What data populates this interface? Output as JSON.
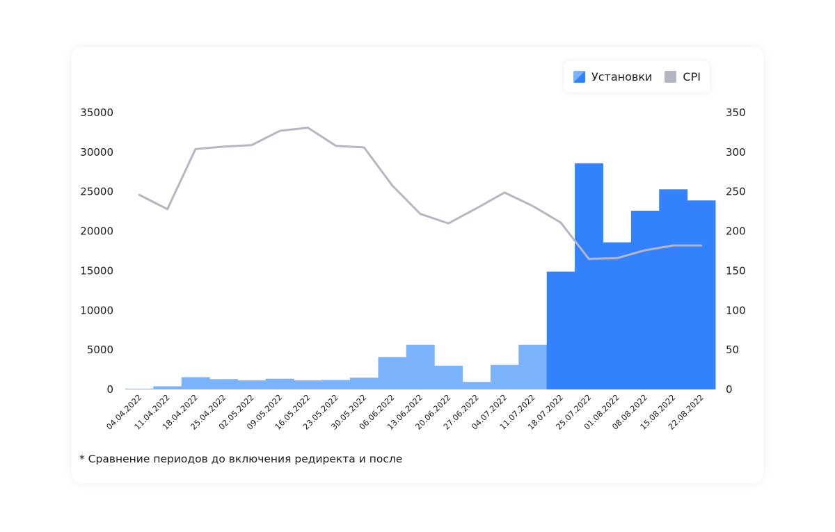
{
  "chart_data": {
    "type": "bar",
    "title": "",
    "xlabel": "",
    "ylabel": "",
    "categories": [
      "04.04.2022",
      "11.04.2022",
      "18.04.2022",
      "25.04.2022",
      "02.05.2022",
      "09.05.2022",
      "16.05.2022",
      "23.05.2022",
      "30.05.2022",
      "06.06.2022",
      "13.06.2022",
      "20.06.2022",
      "27.06.2022",
      "04.07.2022",
      "11.07.2022",
      "18.07.2022",
      "25.07.2022",
      "01.08.2022",
      "08.08.2022",
      "15.08.2022",
      "22.08.2022"
    ],
    "series": [
      {
        "name": "Установки",
        "type": "bar",
        "axis": "left",
        "values": [
          100,
          400,
          1550,
          1300,
          1150,
          1350,
          1150,
          1200,
          1500,
          4100,
          5650,
          3000,
          950,
          3100,
          5650,
          14900,
          28600,
          18600,
          22600,
          25300,
          23900
        ]
      },
      {
        "name": "CPI",
        "type": "line",
        "axis": "right",
        "values": [
          246,
          228,
          304,
          307,
          309,
          327,
          331,
          308,
          306,
          258,
          222,
          210,
          229,
          249,
          232,
          211,
          165,
          166,
          176,
          182,
          182
        ]
      }
    ],
    "ylim": [
      0,
      35000
    ],
    "y2lim": [
      0,
      350
    ],
    "yticks": [
      "0",
      "5000",
      "10000",
      "15000",
      "20000",
      "25000",
      "30000",
      "35000"
    ],
    "y2ticks": [
      "0",
      "50",
      "100",
      "150",
      "200",
      "250",
      "300",
      "350"
    ],
    "legend_position": "top-right",
    "redirect_from_index": 15,
    "colors": {
      "bar_before": "#7ab3fb",
      "bar_after": "#3482fb",
      "line": "#b5b6c4"
    }
  },
  "legend": {
    "installs_label": "Установки",
    "cpi_label": "CPI"
  },
  "footnote": "* Сравнение периодов до включения редиректа и после"
}
